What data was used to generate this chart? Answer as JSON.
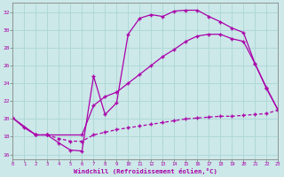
{
  "bg_color": "#cce8e8",
  "line_color": "#aa00aa",
  "grid_color": "#b0d8d8",
  "xlabel": "Windchill (Refroidissement éolien,°C)",
  "xlim": [
    0,
    23
  ],
  "ylim": [
    15.5,
    33.0
  ],
  "yticks": [
    16,
    18,
    20,
    22,
    24,
    26,
    28,
    30,
    32
  ],
  "xticks": [
    0,
    1,
    2,
    3,
    4,
    5,
    6,
    7,
    8,
    9,
    10,
    11,
    12,
    13,
    14,
    15,
    16,
    17,
    18,
    19,
    20,
    21,
    22,
    23
  ],
  "curve1_x": [
    0,
    1,
    2,
    3,
    4,
    5,
    6,
    7,
    8,
    9,
    10,
    11,
    12,
    13,
    14,
    15,
    16,
    17,
    18,
    19,
    20,
    21,
    22,
    23
  ],
  "curve1_y": [
    20.1,
    19.0,
    18.2,
    18.2,
    17.3,
    16.5,
    16.4,
    24.8,
    20.5,
    21.8,
    29.5,
    31.3,
    31.7,
    31.5,
    32.1,
    32.2,
    32.2,
    31.5,
    30.9,
    30.2,
    29.7,
    26.2,
    23.4,
    21.0
  ],
  "curve2_x": [
    0,
    2,
    3,
    6,
    7,
    8,
    9,
    10,
    11,
    12,
    13,
    14,
    15,
    16,
    17,
    18,
    19,
    20,
    21,
    22,
    23
  ],
  "curve2_y": [
    20.1,
    18.2,
    18.2,
    18.2,
    21.5,
    22.5,
    23.0,
    24.0,
    25.0,
    26.0,
    27.0,
    27.8,
    28.7,
    29.3,
    29.5,
    29.5,
    29.0,
    28.7,
    26.2,
    23.5,
    21.0
  ],
  "curve3_x": [
    2,
    3,
    4,
    5,
    6,
    7,
    8,
    9,
    10,
    11,
    12,
    13,
    14,
    15,
    16,
    17,
    18,
    19,
    20,
    21,
    22,
    23
  ],
  "curve3_y": [
    18.2,
    18.2,
    17.8,
    17.5,
    17.5,
    18.2,
    18.5,
    18.8,
    19.0,
    19.2,
    19.4,
    19.6,
    19.8,
    20.0,
    20.1,
    20.2,
    20.3,
    20.3,
    20.4,
    20.5,
    20.6,
    21.0
  ]
}
